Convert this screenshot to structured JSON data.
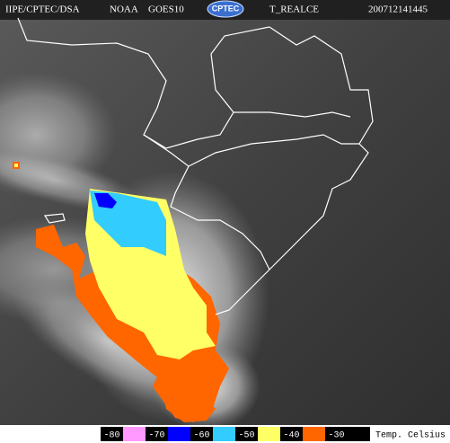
{
  "header": {
    "source": "IIPE/CPTEC/DSA",
    "satellite": "NOAA",
    "instrument": "GOES10",
    "logo": "CPTEC",
    "product": "T_REALCE",
    "timestamp": "200712141445"
  },
  "legend": {
    "items": [
      {
        "label": "-80",
        "color": "#ff99ff"
      },
      {
        "label": "-70",
        "color": "#0000ff"
      },
      {
        "label": "-60",
        "color": "#33ccff"
      },
      {
        "label": "-50",
        "color": "#ffff66"
      },
      {
        "label": "-40",
        "color": "#ff6600"
      },
      {
        "label": "-30",
        "color": "#000000"
      }
    ],
    "unit": "Temp. Celsius"
  }
}
